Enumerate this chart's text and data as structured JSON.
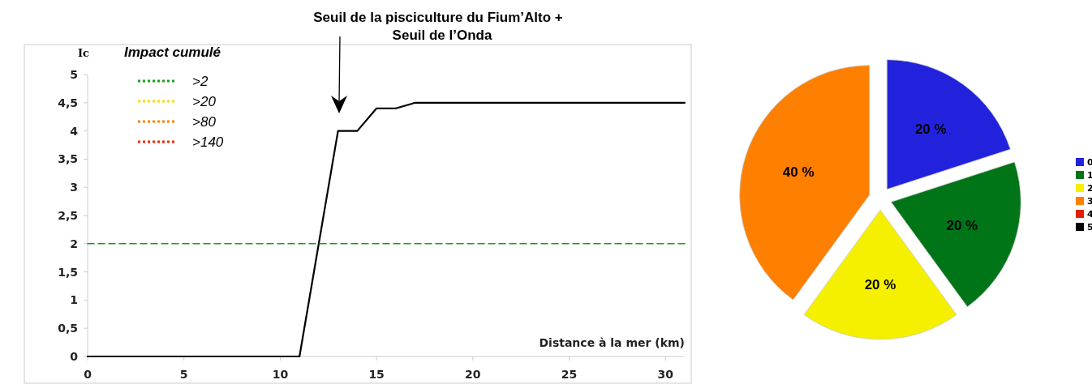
{
  "chart_data": [
    {
      "type": "line",
      "xlabel": "Distance à la mer (km)",
      "ylabel": "Ic",
      "legend_title": "Impact cumulé",
      "legend": "top left",
      "grid": false,
      "xlim": [
        0,
        31
      ],
      "xticks": [
        0,
        5,
        10,
        15,
        20,
        25,
        30
      ],
      "ylim": [
        0,
        5
      ],
      "yticks": [
        0,
        {
          "value": 0.5,
          "label": "0,5"
        },
        1,
        {
          "value": 1.5,
          "label": "1,5"
        },
        2,
        {
          "value": 2.5,
          "label": "2,5"
        },
        3,
        {
          "value": 3.5,
          "label": "3,5"
        },
        4,
        {
          "value": 4.5,
          "label": "4,5"
        },
        5
      ],
      "annotations": [
        "Seuil de la pisciculture du Fium’Alto +\nSeuil de l’Onda"
      ],
      "series": [
        {
          "color": "#000000",
          "line_style": "solid",
          "x": [
            0,
            11,
            13,
            14,
            15,
            16,
            17,
            31
          ],
          "values": [
            0,
            0,
            4,
            4,
            4.4,
            4.4,
            4.5,
            4.5
          ]
        },
        {
          "name": ">2",
          "color": "#16a016",
          "line_style": "dashed",
          "x": [
            0,
            31
          ],
          "values": [
            2,
            2
          ]
        },
        {
          "name": ">20",
          "color": "#ffd700",
          "line_style": "dotted"
        },
        {
          "name": ">80",
          "color": "#ff8000",
          "line_style": "dotted"
        },
        {
          "name": ">140",
          "color": "#ff2000",
          "line_style": "dotted"
        }
      ]
    },
    {
      "type": "pie",
      "categories": [
        "0",
        "1",
        "2",
        "3",
        "4",
        "5"
      ],
      "values": [
        20,
        20,
        20,
        40,
        0,
        0
      ],
      "colors": [
        "#2222dd",
        "#007518",
        "#f5f000",
        "#ff7f00",
        "#e02000",
        "#000000"
      ],
      "value_labels": [
        "20 %",
        "20 %",
        "20 %",
        "40 %",
        null,
        null
      ],
      "legend": "right"
    }
  ]
}
